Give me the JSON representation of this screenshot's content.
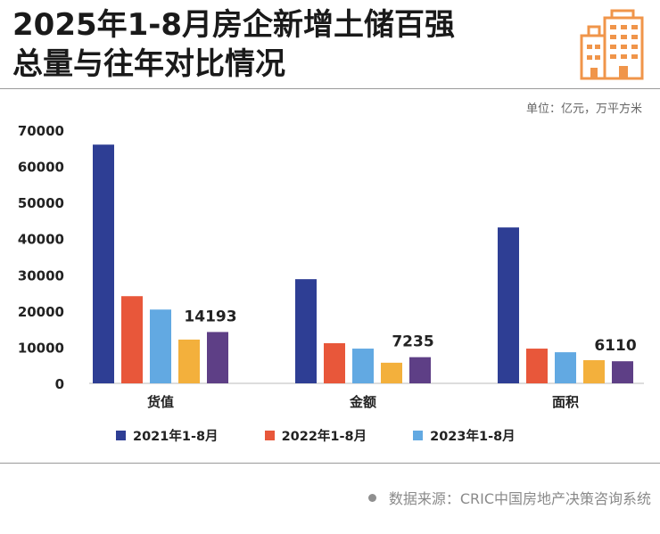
{
  "header": {
    "title_line1": "2025年1-8月房企新增土储百强",
    "title_line2": "总量与往年对比情况",
    "logo_icon": "building-icon",
    "unit": "单位：亿元，万平方米"
  },
  "colors": {
    "accent_orange": "#F0954A",
    "series": [
      "#2E3E94",
      "#E8573A",
      "#62A9E2",
      "#F3B03C",
      "#5E3F86"
    ]
  },
  "chart_data": {
    "type": "bar",
    "title": "2025年1-8月房企新增土储百强总量与往年对比情况",
    "xlabel": "",
    "ylabel": "",
    "ylim": [
      0,
      70000
    ],
    "yticks": [
      "0",
      "10000",
      "20000",
      "30000",
      "40000",
      "50000",
      "60000",
      "70000"
    ],
    "grid": false,
    "categories": [
      "货值",
      "金额",
      "面积"
    ],
    "series": [
      {
        "name": "2021年1-8月",
        "values": [
          66000,
          28800,
          43100
        ]
      },
      {
        "name": "2022年1-8月",
        "values": [
          24100,
          11100,
          9600
        ]
      },
      {
        "name": "2023年1-8月",
        "values": [
          20400,
          9600,
          8600
        ]
      },
      {
        "name": "",
        "values": [
          12100,
          5700,
          6400
        ]
      },
      {
        "name": "",
        "values": [
          14193,
          7235,
          6110
        ]
      }
    ],
    "data_labels": [
      "14193",
      "7235",
      "6110"
    ],
    "legend_position": "bottom"
  },
  "footer": {
    "source": "数据来源：CRIC中国房地产决策咨询系统"
  }
}
